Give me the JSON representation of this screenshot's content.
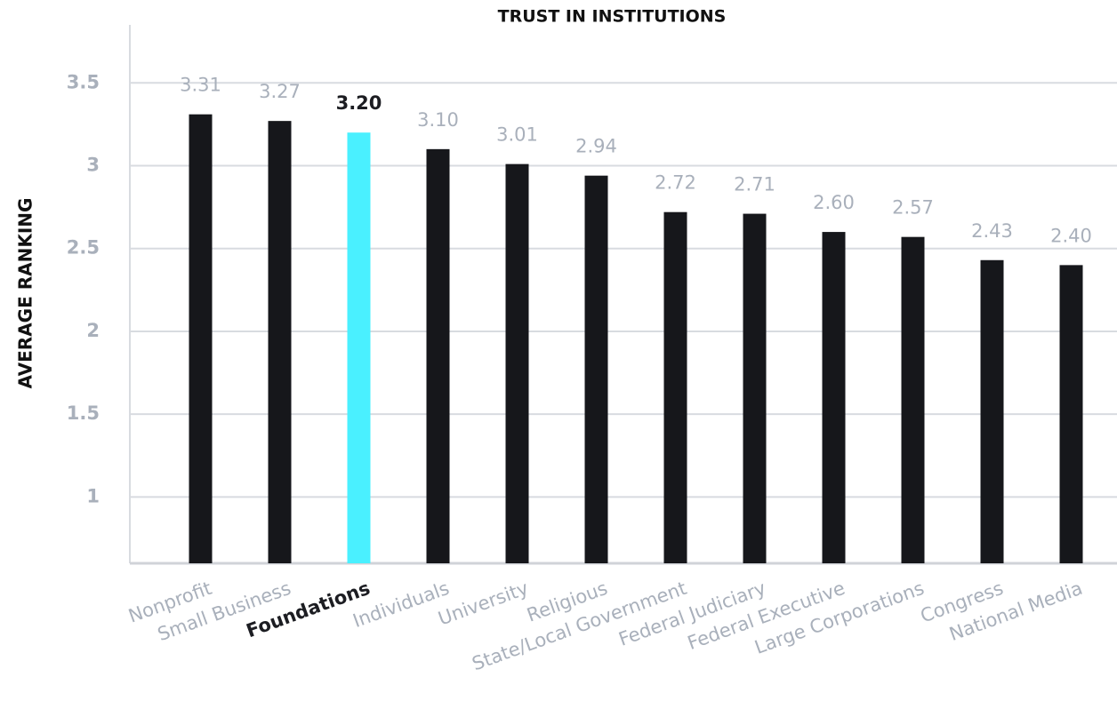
{
  "chart_data": {
    "type": "bar",
    "title": "TRUST IN INSTITUTIONS",
    "y_label": "AVERAGE RANKING",
    "categories": [
      "Nonprofit",
      "Small Business",
      "Foundations",
      "Individuals",
      "University",
      "Religious",
      "State/Local Government",
      "Federal Judiciary",
      "Federal Executive",
      "Large Corporations",
      "Congress",
      "National Media"
    ],
    "values": [
      3.31,
      3.27,
      3.2,
      3.1,
      3.01,
      2.94,
      2.72,
      2.71,
      2.6,
      2.57,
      2.43,
      2.4
    ],
    "value_labels": [
      "3.31",
      "3.27",
      "3.20",
      "3.10",
      "3.01",
      "2.94",
      "2.72",
      "2.71",
      "2.60",
      "2.57",
      "2.43",
      "2.40"
    ],
    "color": "#16171b",
    "colors": [
      "#16171b",
      "#16171b",
      "#4af0ff",
      "#16171b",
      "#16171b",
      "#16171b",
      "#16171b",
      "#16171b",
      "#16171b",
      "#16171b",
      "#16171b",
      "#16171b"
    ],
    "ylim": [
      0.6,
      3.85
    ],
    "yticks": [
      1,
      1.5,
      2,
      2.5,
      3,
      3.5
    ],
    "grid": true
  }
}
